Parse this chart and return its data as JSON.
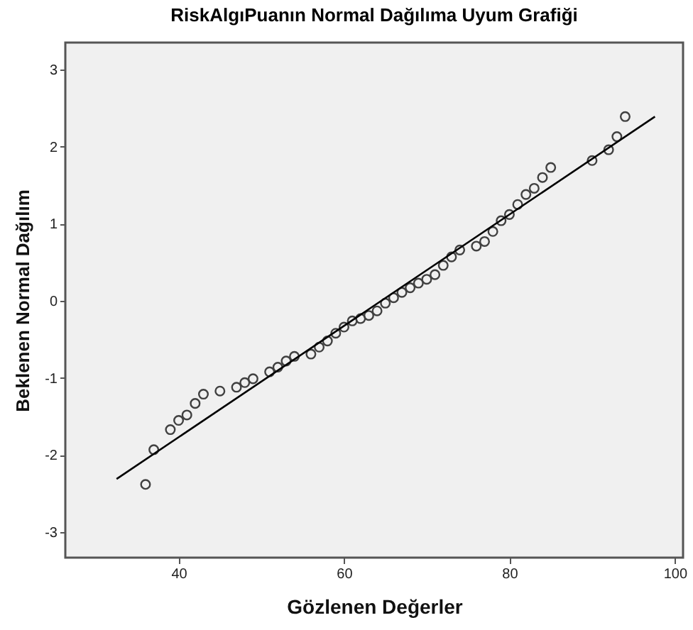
{
  "chart_data": {
    "type": "scatter",
    "title": "RiskAlgıPuanın Normal Dağılıma Uyum Grafiği",
    "xlabel": "Gözlenen Değerler",
    "ylabel": "Beklenen Normal Dağılım",
    "xlim": [
      26.3,
      101
    ],
    "ylim": [
      -3.33,
      3.35
    ],
    "xticks": [
      40,
      60,
      80,
      100
    ],
    "yticks": [
      -3,
      -2,
      -1,
      0,
      1,
      2,
      3
    ],
    "grid": false,
    "marker": "circle",
    "series": [
      {
        "color": "#404040",
        "x": [
          36,
          37,
          39,
          40,
          41,
          42,
          43,
          45,
          47,
          48,
          49,
          51,
          52,
          53,
          54,
          56,
          57,
          58,
          59,
          60,
          61,
          62,
          63,
          64,
          65,
          66,
          67,
          68,
          69,
          70,
          71,
          72,
          73,
          74,
          76,
          77,
          78,
          79,
          80,
          81,
          82,
          83,
          84,
          85,
          90,
          92,
          93,
          94
        ],
        "values": [
          -2.38,
          -1.93,
          -1.67,
          -1.55,
          -1.48,
          -1.33,
          -1.21,
          -1.17,
          -1.12,
          -1.06,
          -1.01,
          -0.92,
          -0.86,
          -0.78,
          -0.72,
          -0.69,
          -0.6,
          -0.52,
          -0.42,
          -0.34,
          -0.26,
          -0.23,
          -0.19,
          -0.13,
          -0.03,
          0.04,
          0.11,
          0.17,
          0.23,
          0.28,
          0.34,
          0.46,
          0.57,
          0.66,
          0.71,
          0.77,
          0.9,
          1.04,
          1.12,
          1.25,
          1.38,
          1.46,
          1.6,
          1.73,
          1.82,
          1.96,
          2.13,
          2.39
        ]
      },
      {
        "type": "line",
        "color": "#000000",
        "x": [
          32.5,
          97.6
        ],
        "values": [
          -2.31,
          2.39
        ],
        "marker": "none",
        "line_style": "solid"
      }
    ]
  }
}
